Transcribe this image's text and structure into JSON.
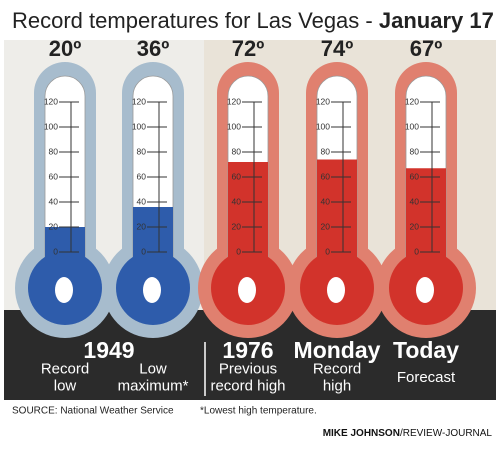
{
  "chart_data": {
    "type": "thermometer",
    "title": "Record temperatures for Las Vegas -",
    "title_emphasis": "January 17",
    "ylim": [
      0,
      120
    ],
    "yticks": [
      0,
      20,
      40,
      60,
      80,
      100,
      120
    ],
    "groups": [
      {
        "label": "1949",
        "items": [
          {
            "label_lines": [
              "Record",
              "low"
            ],
            "value": 20,
            "value_label": "20º",
            "color": "#2e5cab",
            "halo": "#a7bccd"
          },
          {
            "label_lines": [
              "Low",
              "maximum*"
            ],
            "value": 36,
            "value_label": "36º",
            "color": "#2e5cab",
            "halo": "#a7bccd"
          }
        ]
      },
      {
        "label": "1976",
        "items": [
          {
            "label_lines": [
              "Previous",
              "record high"
            ],
            "value": 72,
            "value_label": "72º",
            "color": "#d2332b",
            "halo": "#e0806f"
          }
        ]
      },
      {
        "label": "Monday",
        "items": [
          {
            "label_lines": [
              "Record",
              "high"
            ],
            "value": 74,
            "value_label": "74º",
            "color": "#d2332b",
            "halo": "#e0806f"
          }
        ]
      },
      {
        "label": "Today",
        "items": [
          {
            "label_lines": [
              "Forecast"
            ],
            "value": 67,
            "value_label": "67º",
            "color": "#d2332b",
            "halo": "#e0806f"
          }
        ]
      }
    ],
    "source": "SOURCE: National Weather Service",
    "footnote": "*Lowest high temperature.",
    "credit_name": "MIKE JOHNSON",
    "credit_org": "/REVIEW-JOURNAL"
  }
}
